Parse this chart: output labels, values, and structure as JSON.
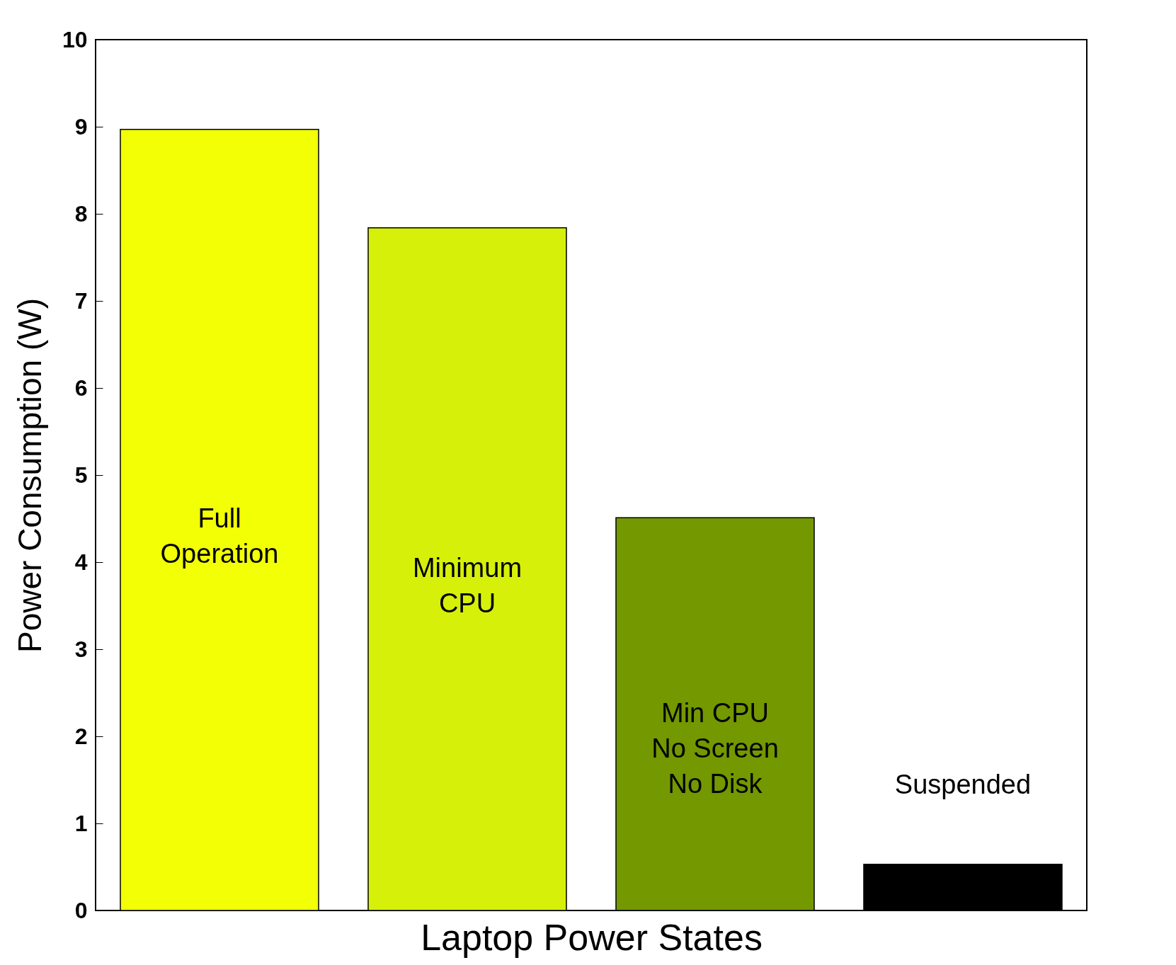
{
  "chart_data": {
    "type": "bar",
    "xlabel": "Laptop Power States",
    "ylabel": "Power Consumption (W)",
    "categories": [
      "Full\nOperation",
      "Minimum\nCPU",
      "Min CPU\nNo Screen\nNo Disk",
      "Suspended"
    ],
    "values": [
      8.97,
      7.84,
      4.51,
      0.53
    ],
    "colors": [
      "#f2ff05",
      "#d6f00a",
      "#739800",
      "#000000"
    ],
    "ylim": [
      0,
      10
    ],
    "yticks": [
      0,
      1,
      2,
      3,
      4,
      5,
      6,
      7,
      8,
      9,
      10
    ],
    "grid": false,
    "tick_labels": "y"
  }
}
